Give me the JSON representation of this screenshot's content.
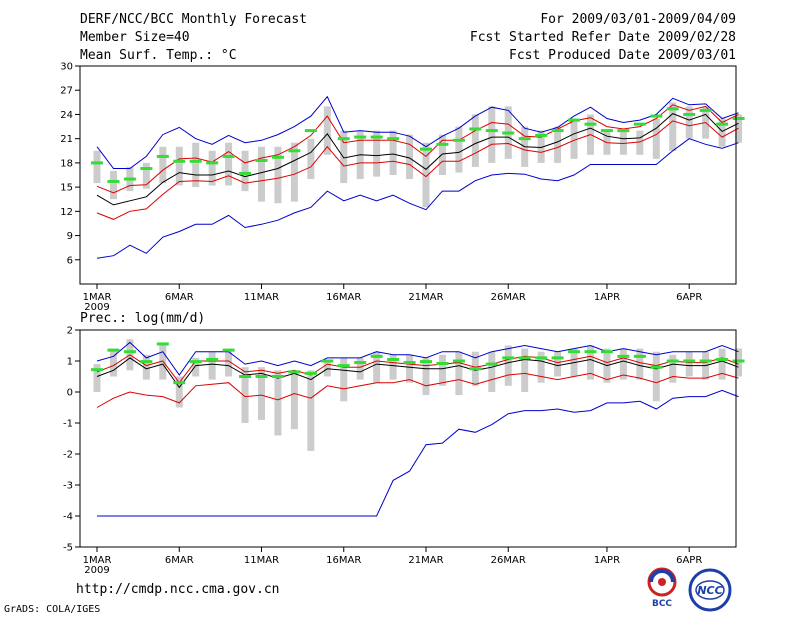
{
  "header": {
    "title": "DERF/NCC/BCC Monthly Forecast",
    "member": "Member Size=40",
    "var1": "Mean Surf. Temp.: °C",
    "period": "For 2009/03/01-2009/04/09",
    "refer": "Fcst Started Refer Date 2009/02/28",
    "produced": "Fcst Produced Date 2009/03/01"
  },
  "panel2_label": "Prec.: log(mm/d)",
  "footer": {
    "url": "http://cmdp.ncc.cma.gov.cn",
    "grads": "GrADS: COLA/IGES"
  },
  "logos": {
    "bcc": "BCC",
    "ncc": "NCC"
  },
  "colors": {
    "box": "#cccccc",
    "median": "#33dd33",
    "mean": "#000000",
    "spread": "#dd0000",
    "extreme": "#0000cc"
  },
  "chart_data": [
    {
      "type": "line",
      "title": "Mean Surf. Temp.: °C",
      "ylim": [
        3,
        30
      ],
      "yticks": [
        6,
        9,
        12,
        15,
        18,
        21,
        24,
        27,
        30
      ],
      "xticks": [
        {
          "day": 1,
          "label": "1MAR"
        },
        {
          "day": 6,
          "label": "6MAR"
        },
        {
          "day": 11,
          "label": "11MAR"
        },
        {
          "day": 16,
          "label": "16MAR"
        },
        {
          "day": 21,
          "label": "21MAR"
        },
        {
          "day": 26,
          "label": "26MAR"
        },
        {
          "day": 32,
          "label": "1APR"
        },
        {
          "day": 37,
          "label": "6APR"
        }
      ],
      "year_label": "2009",
      "box_low": [
        15.5,
        13.5,
        14.5,
        14.8,
        15.5,
        15.2,
        15.0,
        15.2,
        15.2,
        14.5,
        13.2,
        13.0,
        13.2,
        16.0,
        19.0,
        15.5,
        16.0,
        16.3,
        16.5,
        16.0,
        12.5,
        16.5,
        16.8,
        17.5,
        18.0,
        18.5,
        17.5,
        18.0,
        18.0,
        18.5,
        19.0,
        19.0,
        19.0,
        19.0,
        18.5,
        19.5,
        21.0,
        21.0,
        20.0,
        20.5
      ],
      "box_high": [
        19.5,
        17.0,
        17.5,
        18.0,
        20.0,
        20.0,
        20.5,
        19.5,
        20.5,
        19.5,
        20.0,
        20.0,
        20.5,
        21.0,
        25.0,
        22.0,
        22.0,
        22.0,
        22.0,
        21.5,
        20.5,
        21.5,
        22.5,
        24.0,
        25.0,
        25.0,
        22.5,
        22.0,
        22.5,
        23.5,
        24.0,
        22.0,
        22.0,
        22.0,
        23.5,
        25.5,
        25.0,
        25.0,
        23.5,
        24.0
      ],
      "median": [
        18.0,
        15.7,
        16.0,
        17.3,
        18.8,
        18.2,
        18.2,
        18.0,
        18.8,
        16.7,
        18.3,
        18.7,
        19.5,
        22.0,
        null,
        21.0,
        21.2,
        21.2,
        21.0,
        null,
        19.7,
        20.3,
        20.8,
        22.2,
        22.0,
        21.7,
        21.0,
        21.4,
        22.0,
        23.3,
        22.8,
        22.0,
        22.0,
        22.8,
        23.8,
        24.7,
        24.0,
        24.5,
        22.8,
        23.5
      ],
      "series": [
        {
          "name": "ensemble-mean",
          "color": "#000000",
          "values": [
            14.0,
            12.8,
            13.3,
            13.8,
            15.6,
            16.8,
            16.5,
            16.5,
            17.0,
            16.3,
            16.8,
            17.3,
            18.3,
            19.3,
            21.6,
            18.6,
            19.0,
            18.9,
            19.1,
            18.6,
            17.2,
            19.1,
            19.3,
            20.4,
            21.2,
            21.2,
            20.0,
            19.9,
            20.6,
            21.6,
            22.3,
            21.3,
            21.0,
            21.1,
            22.3,
            24.1,
            23.3,
            24.0,
            21.9,
            22.9
          ]
        },
        {
          "name": "mean-plus-sd",
          "color": "#dd0000",
          "values": [
            15.1,
            14.3,
            15.2,
            15.3,
            17.1,
            18.5,
            18.6,
            18.1,
            19.4,
            18.0,
            18.6,
            19.0,
            20.0,
            21.4,
            23.8,
            20.5,
            20.8,
            20.8,
            20.8,
            20.3,
            18.8,
            20.8,
            20.8,
            22.0,
            23.0,
            22.8,
            21.3,
            21.2,
            22.2,
            23.2,
            23.6,
            22.5,
            22.2,
            22.5,
            23.5,
            25.2,
            24.5,
            25.0,
            23.0,
            24.0
          ]
        },
        {
          "name": "mean-minus-sd",
          "color": "#dd0000",
          "values": [
            11.8,
            11.0,
            12.0,
            12.3,
            14.1,
            15.7,
            15.8,
            15.7,
            16.4,
            15.5,
            15.8,
            16.1,
            16.6,
            17.5,
            20.0,
            17.6,
            18.0,
            18.0,
            18.2,
            17.8,
            16.3,
            18.2,
            18.2,
            19.2,
            20.3,
            20.4,
            19.6,
            19.3,
            19.9,
            20.8,
            21.5,
            20.5,
            20.4,
            20.6,
            21.5,
            23.2,
            22.6,
            23.0,
            21.2,
            22.3
          ]
        },
        {
          "name": "ensemble-max",
          "color": "#0000cc",
          "values": [
            20.0,
            17.3,
            17.3,
            18.8,
            21.5,
            22.4,
            21.0,
            20.3,
            21.4,
            20.5,
            20.8,
            21.5,
            22.5,
            23.8,
            26.2,
            21.8,
            22.0,
            21.8,
            21.8,
            21.3,
            20.0,
            21.3,
            22.3,
            23.8,
            24.9,
            24.5,
            22.3,
            21.8,
            22.4,
            23.8,
            24.9,
            23.5,
            23.0,
            23.3,
            24.0,
            26.0,
            25.2,
            25.3,
            23.5,
            24.2
          ]
        },
        {
          "name": "ensemble-min",
          "color": "#0000cc",
          "values": [
            6.2,
            6.5,
            7.8,
            6.8,
            8.8,
            9.5,
            10.4,
            10.4,
            11.5,
            10.0,
            10.4,
            10.9,
            11.8,
            12.5,
            14.5,
            13.3,
            14.0,
            13.3,
            14.0,
            13.0,
            12.2,
            14.5,
            14.5,
            15.8,
            16.5,
            16.7,
            16.6,
            16.0,
            15.8,
            16.5,
            17.8,
            17.8,
            17.8,
            17.8,
            17.8,
            19.5,
            21.0,
            20.3,
            19.8,
            20.5
          ]
        }
      ]
    },
    {
      "type": "line",
      "title": "Prec.: log(mm/d)",
      "ylim": [
        -5,
        2
      ],
      "yticks": [
        -5,
        -4,
        -3,
        -2,
        -1,
        0,
        1,
        2
      ],
      "xticks": [
        {
          "day": 1,
          "label": "1MAR"
        },
        {
          "day": 6,
          "label": "6MAR"
        },
        {
          "day": 11,
          "label": "11MAR"
        },
        {
          "day": 16,
          "label": "16MAR"
        },
        {
          "day": 21,
          "label": "21MAR"
        },
        {
          "day": 26,
          "label": "26MAR"
        },
        {
          "day": 32,
          "label": "1APR"
        },
        {
          "day": 37,
          "label": "6APR"
        }
      ],
      "year_label": "2009",
      "box_low": [
        0.0,
        0.5,
        0.7,
        0.4,
        0.4,
        -0.5,
        0.5,
        0.4,
        0.5,
        -1.0,
        -0.9,
        -1.4,
        -1.2,
        -1.9,
        0.5,
        -0.3,
        0.4,
        0.3,
        0.4,
        0.3,
        -0.1,
        0.2,
        -0.1,
        0.2,
        0.0,
        0.2,
        0.0,
        0.3,
        0.5,
        0.5,
        0.4,
        0.3,
        0.4,
        0.4,
        -0.3,
        0.3,
        0.5,
        0.4,
        0.4,
        0.5
      ],
      "box_high": [
        0.9,
        1.4,
        1.7,
        1.2,
        1.6,
        0.5,
        1.1,
        1.3,
        1.4,
        0.8,
        0.8,
        0.7,
        0.6,
        0.7,
        1.0,
        1.1,
        1.1,
        1.3,
        1.2,
        1.2,
        1.1,
        1.2,
        1.3,
        1.3,
        1.3,
        1.5,
        1.4,
        1.3,
        1.3,
        1.4,
        1.5,
        1.4,
        1.4,
        1.4,
        1.3,
        1.2,
        1.3,
        1.3,
        1.4,
        1.4
      ],
      "median": [
        0.72,
        1.35,
        1.3,
        0.98,
        1.55,
        0.3,
        0.98,
        1.05,
        1.35,
        0.5,
        0.5,
        0.5,
        0.65,
        0.6,
        1.0,
        0.85,
        0.95,
        1.15,
        1.05,
        0.95,
        0.98,
        0.92,
        1.0,
        0.75,
        0.9,
        1.1,
        1.1,
        1.1,
        1.1,
        1.3,
        1.3,
        1.3,
        1.15,
        1.15,
        0.8,
        1.0,
        1.0,
        1.0,
        1.05,
        1.0
      ],
      "series": [
        {
          "name": "ensemble-mean",
          "color": "#000000",
          "values": [
            0.5,
            0.7,
            1.1,
            0.75,
            0.9,
            0.15,
            0.85,
            0.9,
            0.85,
            0.55,
            0.6,
            0.45,
            0.6,
            0.4,
            0.75,
            0.7,
            0.65,
            0.9,
            0.85,
            0.8,
            0.75,
            0.75,
            0.85,
            0.7,
            0.8,
            0.95,
            1.05,
            1.0,
            0.85,
            0.95,
            1.05,
            0.85,
            1.0,
            0.85,
            0.75,
            0.9,
            0.85,
            0.85,
            1.0,
            0.8
          ]
        },
        {
          "name": "mean-plus-sd",
          "color": "#dd0000",
          "values": [
            0.65,
            0.85,
            1.2,
            0.85,
            1.0,
            0.3,
            1.0,
            1.0,
            1.0,
            0.65,
            0.7,
            0.6,
            0.7,
            0.55,
            0.9,
            0.8,
            0.8,
            1.0,
            0.95,
            0.9,
            0.85,
            0.9,
            0.95,
            0.8,
            0.9,
            1.05,
            1.15,
            1.1,
            0.95,
            1.05,
            1.15,
            0.95,
            1.1,
            0.95,
            0.85,
            1.0,
            0.95,
            0.95,
            1.1,
            0.9
          ]
        },
        {
          "name": "mean-minus-sd",
          "color": "#dd0000",
          "values": [
            -0.5,
            -0.2,
            0.0,
            -0.1,
            -0.15,
            -0.35,
            0.2,
            0.25,
            0.3,
            -0.15,
            -0.1,
            -0.25,
            -0.05,
            -0.2,
            0.2,
            0.1,
            0.2,
            0.3,
            0.3,
            0.4,
            0.2,
            0.3,
            0.4,
            0.25,
            0.4,
            0.55,
            0.6,
            0.5,
            0.4,
            0.5,
            0.6,
            0.4,
            0.55,
            0.45,
            0.3,
            0.5,
            0.45,
            0.45,
            0.6,
            0.45
          ]
        },
        {
          "name": "ensemble-max",
          "color": "#0000cc",
          "values": [
            1.0,
            1.15,
            1.6,
            1.1,
            1.3,
            0.55,
            1.3,
            1.3,
            1.3,
            0.9,
            1.0,
            0.85,
            1.0,
            0.85,
            1.1,
            1.1,
            1.1,
            1.3,
            1.2,
            1.2,
            1.1,
            1.3,
            1.3,
            1.1,
            1.3,
            1.4,
            1.5,
            1.4,
            1.3,
            1.4,
            1.5,
            1.3,
            1.4,
            1.3,
            1.2,
            1.3,
            1.3,
            1.3,
            1.5,
            1.3
          ]
        },
        {
          "name": "ensemble-min",
          "color": "#0000cc",
          "values": [
            -4.0,
            -4.0,
            -4.0,
            -4.0,
            -4.0,
            -4.0,
            -4.0,
            -4.0,
            -4.0,
            -4.0,
            -4.0,
            -4.0,
            -4.0,
            -4.0,
            -4.0,
            -4.0,
            -4.0,
            -4.0,
            -2.85,
            -2.55,
            -1.7,
            -1.65,
            -1.2,
            -1.3,
            -1.05,
            -0.7,
            -0.6,
            -0.6,
            -0.55,
            -0.65,
            -0.6,
            -0.35,
            -0.35,
            -0.3,
            -0.55,
            -0.2,
            -0.15,
            -0.15,
            0.05,
            -0.15
          ]
        }
      ]
    }
  ]
}
